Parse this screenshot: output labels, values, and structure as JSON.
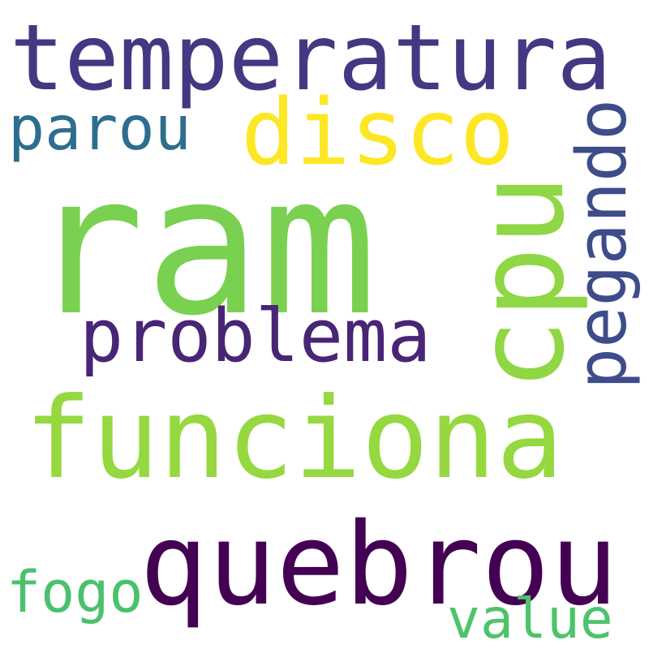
{
  "words": [
    {
      "id": "temperatura",
      "text": "temperatura",
      "color": "#453781"
    },
    {
      "id": "disco",
      "text": "disco",
      "color": "#fde725"
    },
    {
      "id": "parou",
      "text": "parou",
      "color": "#2d6e8e"
    },
    {
      "id": "ram",
      "text": "ram",
      "color": "#7ad151"
    },
    {
      "id": "cpu",
      "text": "cpu",
      "color": "#8fd744"
    },
    {
      "id": "pegando",
      "text": "pegando",
      "color": "#3e4c8a"
    },
    {
      "id": "problema",
      "text": "problema",
      "color": "#482575"
    },
    {
      "id": "funciona",
      "text": "funciona",
      "color": "#95d840"
    },
    {
      "id": "quebrou",
      "text": "quebrou",
      "color": "#440154"
    },
    {
      "id": "fogo",
      "text": "fogo",
      "color": "#4ac16d"
    },
    {
      "id": "value",
      "text": "value",
      "color": "#4ec36b"
    }
  ]
}
